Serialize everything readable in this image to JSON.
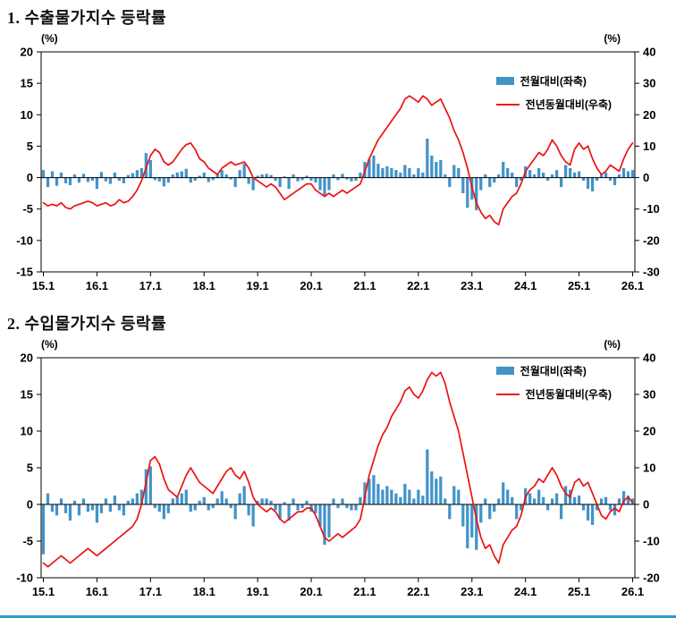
{
  "page": {
    "footer_rule_color": "#2e9ec7"
  },
  "charts": [
    {
      "title": "1. 수출물가지수 등락률",
      "left_unit": "(%)",
      "right_unit": "(%)",
      "legend": [
        "전월대비(좌축)",
        "전년동월대비(우축)"
      ]
    },
    {
      "title": "2. 수입물가지수 등락률",
      "left_unit": "(%)",
      "right_unit": "(%)",
      "legend": [
        "전월대비(좌축)",
        "전년동월대비(우축)"
      ]
    }
  ],
  "chart_data": [
    {
      "type": "bar+line",
      "title": "수출물가지수 등락률",
      "x_monthly_start": "2015-01",
      "x_monthly_end": "2026-01",
      "x_labels": [
        "15.1",
        "16.1",
        "17.1",
        "18.1",
        "19.1",
        "20.1",
        "21.1",
        "22.1",
        "23.1",
        "24.1",
        "25.1",
        "26.1"
      ],
      "left_axis": {
        "min": -15,
        "max": 20,
        "ticks": [
          20,
          15,
          10,
          5,
          0,
          -5,
          -10,
          -15
        ],
        "unit": "(%)"
      },
      "right_axis": {
        "min": -30,
        "max": 40,
        "ticks": [
          40,
          30,
          20,
          10,
          0,
          -10,
          -20,
          -30
        ],
        "unit": "(%)"
      },
      "bar_color": "#4293c8",
      "line_color": "#ee1111",
      "legend_position": "top-right",
      "grid": false,
      "series": [
        {
          "name": "전월대비(좌축)",
          "type": "bar",
          "axis": "left",
          "values": [
            1.2,
            -1.5,
            1.0,
            -1.3,
            0.8,
            -0.9,
            -1.2,
            0.5,
            -0.8,
            0.6,
            -0.7,
            -0.5,
            -1.8,
            0.9,
            -0.6,
            -1.0,
            0.8,
            -0.5,
            -0.9,
            0.4,
            0.7,
            1.2,
            1.5,
            3.9,
            2.8,
            -0.4,
            -0.6,
            -1.4,
            -0.8,
            0.5,
            0.8,
            1.0,
            1.4,
            -0.8,
            -0.5,
            0.3,
            0.8,
            -0.7,
            -0.4,
            0.6,
            1.2,
            0.5,
            -0.3,
            -1.5,
            1.2,
            2.2,
            -1.0,
            -2.0,
            0.3,
            0.5,
            0.6,
            0.4,
            -0.5,
            -1.5,
            0.2,
            -1.8,
            0.5,
            -0.6,
            -0.4,
            0.3,
            -0.5,
            -0.8,
            -2.0,
            -3.0,
            -2.0,
            0.5,
            -0.4,
            0.6,
            -0.3,
            -0.6,
            -0.5,
            0.8,
            2.5,
            3.0,
            3.5,
            2.2,
            1.5,
            1.8,
            1.5,
            1.2,
            0.8,
            2.0,
            1.5,
            0.5,
            1.5,
            0.8,
            6.2,
            3.5,
            2.5,
            2.8,
            0.5,
            -1.5,
            2.0,
            1.5,
            -2.5,
            -4.8,
            -3.5,
            -5.2,
            -2.0,
            0.5,
            -1.5,
            -0.8,
            0.5,
            2.5,
            1.5,
            0.8,
            -1.5,
            -0.5,
            1.8,
            1.2,
            0.5,
            1.5,
            0.8,
            -0.5,
            0.5,
            1.2,
            -1.5,
            2.0,
            1.5,
            0.8,
            1.0,
            -0.5,
            -1.8,
            -2.2,
            -0.5,
            0.5,
            0.8,
            -0.5,
            -1.2,
            0.5,
            1.5,
            1.0,
            1.2
          ]
        },
        {
          "name": "전년동월대비(우축)",
          "type": "line",
          "axis": "right",
          "values": [
            -8,
            -9,
            -8.5,
            -9,
            -8,
            -9.5,
            -10,
            -9,
            -8.5,
            -8,
            -7.5,
            -8,
            -9,
            -8.5,
            -8,
            -9,
            -8.5,
            -7,
            -8,
            -7.5,
            -6,
            -4,
            -1,
            3,
            7,
            9,
            8,
            5,
            4,
            5,
            7,
            9,
            10.5,
            11,
            9,
            6,
            5,
            3,
            2,
            1,
            3,
            4,
            5,
            4,
            4.5,
            5,
            3,
            0,
            -1,
            -2,
            -3,
            -2,
            -3,
            -5,
            -7,
            -6,
            -5,
            -4,
            -3,
            -2,
            -2,
            -4,
            -5,
            -6,
            -5,
            -6,
            -5,
            -4,
            -5,
            -4,
            -3,
            -2,
            2,
            6,
            9,
            12,
            14,
            16,
            18,
            20,
            22,
            25,
            26,
            25,
            24,
            26,
            25,
            23,
            24,
            25,
            22,
            19,
            15,
            12,
            8,
            3,
            -3,
            -8,
            -11,
            -13,
            -12,
            -14,
            -15,
            -10,
            -8,
            -6,
            -5,
            -2,
            2,
            4,
            6,
            8,
            7,
            9,
            12,
            10,
            7,
            5,
            4,
            9,
            11,
            9,
            10,
            6,
            3,
            1,
            2,
            4,
            3,
            2,
            6,
            9,
            11
          ]
        }
      ]
    },
    {
      "type": "bar+line",
      "title": "수입물가지수 등락률",
      "x_monthly_start": "2015-01",
      "x_monthly_end": "2026-01",
      "x_labels": [
        "15.1",
        "16.1",
        "17.1",
        "18.1",
        "19.1",
        "20.1",
        "21.1",
        "22.1",
        "23.1",
        "24.1",
        "25.1",
        "26.1"
      ],
      "left_axis": {
        "min": -10,
        "max": 20,
        "ticks": [
          20,
          15,
          10,
          5,
          0,
          -5,
          -10
        ],
        "unit": "(%)"
      },
      "right_axis": {
        "min": -20,
        "max": 40,
        "ticks": [
          40,
          30,
          20,
          10,
          0,
          -10,
          -20
        ],
        "unit": "(%)"
      },
      "bar_color": "#4293c8",
      "line_color": "#ee1111",
      "legend_position": "top-right",
      "grid": false,
      "series": [
        {
          "name": "전월대비(좌축)",
          "type": "bar",
          "axis": "left",
          "values": [
            -6.8,
            1.5,
            -1.0,
            -1.5,
            0.8,
            -1.2,
            -2.2,
            0.5,
            -1.5,
            0.8,
            -1.0,
            -0.8,
            -2.5,
            -1.2,
            0.8,
            -1.0,
            1.2,
            -0.8,
            -1.5,
            0.5,
            0.8,
            1.5,
            2.0,
            4.8,
            5.2,
            -0.5,
            -1.0,
            -2.0,
            -1.2,
            0.8,
            1.0,
            1.5,
            2.0,
            -1.0,
            -0.8,
            0.5,
            1.0,
            -0.8,
            -0.5,
            0.8,
            1.8,
            0.8,
            -0.5,
            -2.0,
            1.5,
            2.5,
            -1.5,
            -3.0,
            0.5,
            0.8,
            0.8,
            0.5,
            -0.8,
            -2.0,
            0.3,
            -2.2,
            0.8,
            -0.8,
            -0.5,
            0.5,
            -1.0,
            -1.2,
            -3.0,
            -5.5,
            -4.5,
            0.8,
            -0.5,
            0.8,
            -0.5,
            -0.8,
            -0.8,
            1.0,
            3.0,
            3.5,
            4.0,
            2.8,
            2.0,
            2.5,
            2.0,
            1.5,
            1.0,
            2.8,
            2.0,
            0.8,
            2.0,
            1.2,
            7.5,
            4.5,
            3.5,
            3.8,
            0.8,
            -2.0,
            2.5,
            2.0,
            -3.0,
            -6.0,
            -4.5,
            -6.2,
            -2.5,
            0.8,
            -2.0,
            -1.0,
            0.8,
            3.0,
            2.0,
            1.0,
            -2.0,
            -0.8,
            2.2,
            1.5,
            0.8,
            2.0,
            1.0,
            -0.8,
            0.8,
            1.5,
            -2.0,
            2.5,
            2.0,
            1.0,
            1.2,
            -0.8,
            -2.2,
            -2.8,
            -0.8,
            0.8,
            1.0,
            -0.8,
            -1.5,
            0.8,
            1.8,
            1.2,
            0.8
          ]
        },
        {
          "name": "전년동월대비(우축)",
          "type": "line",
          "axis": "right",
          "values": [
            -16,
            -17,
            -16,
            -15,
            -14,
            -15,
            -16,
            -15,
            -14,
            -13,
            -12,
            -13,
            -14,
            -13,
            -12,
            -11,
            -10,
            -9,
            -8,
            -7,
            -6,
            -4,
            0,
            6,
            12,
            13,
            11,
            7,
            4,
            3,
            2,
            5,
            8,
            10,
            8,
            6,
            5,
            4,
            3,
            5,
            7,
            9,
            10,
            8,
            7,
            9,
            6,
            2,
            0,
            -1,
            -2,
            -1,
            -2,
            -4,
            -5,
            -4,
            -3,
            -2,
            -2,
            -1,
            -1,
            -3,
            -6,
            -9,
            -10,
            -9,
            -8,
            -9,
            -8,
            -7,
            -6,
            -4,
            2,
            8,
            12,
            16,
            19,
            21,
            24,
            26,
            28,
            31,
            32,
            30,
            29,
            31,
            34,
            36,
            35,
            36,
            33,
            28,
            24,
            20,
            14,
            8,
            2,
            -4,
            -9,
            -12,
            -11,
            -14,
            -16,
            -11,
            -9,
            -7,
            -6,
            -3,
            2,
            4,
            5,
            7,
            6,
            8,
            10,
            8,
            5,
            3,
            2,
            6,
            7,
            5,
            6,
            3,
            0,
            -3,
            -4,
            -2,
            -1,
            -2,
            1,
            2,
            0.5
          ]
        }
      ]
    }
  ]
}
